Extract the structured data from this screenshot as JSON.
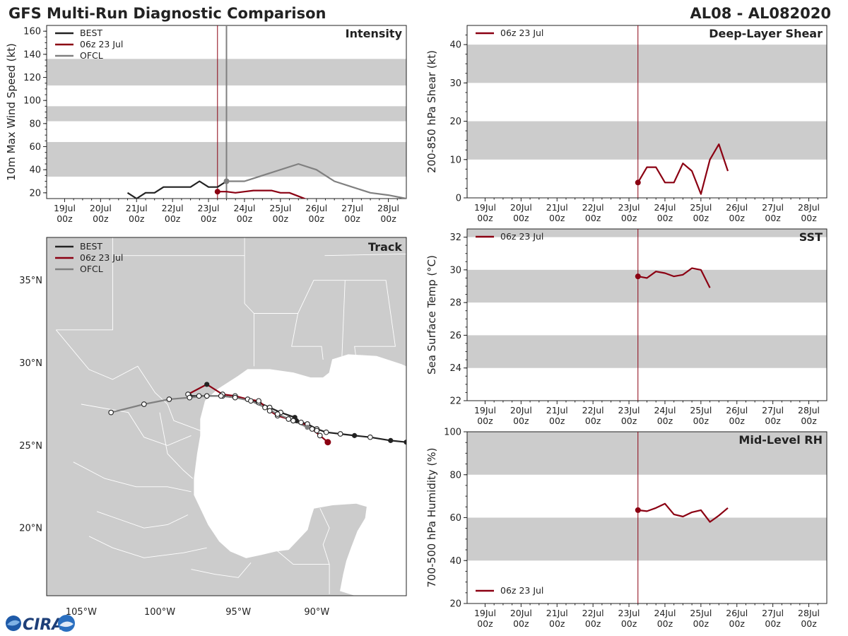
{
  "header": {
    "title": "GFS Multi-Run Diagnostic Comparison",
    "storm_id": "AL08 - AL082020"
  },
  "logo": {
    "text": "CIRA"
  },
  "colors": {
    "best": "#222222",
    "run": "#8b0012",
    "ofcl": "#808080",
    "band": "#cccccc",
    "axis": "#222222"
  },
  "time_axis": {
    "ticks": [
      {
        "day": "19Jul",
        "hour": "00z"
      },
      {
        "day": "20Jul",
        "hour": "00z"
      },
      {
        "day": "21Jul",
        "hour": "00z"
      },
      {
        "day": "22Jul",
        "hour": "00z"
      },
      {
        "day": "23Jul",
        "hour": "00z"
      },
      {
        "day": "24Jul",
        "hour": "00z"
      },
      {
        "day": "25Jul",
        "hour": "00z"
      },
      {
        "day": "26Jul",
        "hour": "00z"
      },
      {
        "day": "27Jul",
        "hour": "00z"
      },
      {
        "day": "28Jul",
        "hour": "00z"
      }
    ],
    "range_days": [
      -0.5,
      9.5
    ],
    "init_day": 4.25,
    "ofcl_day": 4.5
  },
  "chart_data": [
    {
      "id": "intensity",
      "type": "line",
      "title": "Intensity",
      "xlabel": "",
      "ylabel": "10m Max Wind Speed (kt)",
      "ylim": [
        15,
        165
      ],
      "yticks": [
        20,
        40,
        60,
        80,
        100,
        120,
        140,
        160
      ],
      "bands": [
        [
          34,
          64
        ],
        [
          82,
          95
        ],
        [
          113,
          136
        ]
      ],
      "legend": [
        "BEST",
        "06z 23 Jul",
        "OFCL"
      ],
      "series": [
        {
          "name": "BEST",
          "color": "best",
          "x": [
            1.75,
            2.0,
            2.25,
            2.5,
            2.75,
            3.0,
            3.25,
            3.5,
            3.75,
            4.0,
            4.25,
            4.5
          ],
          "y": [
            20,
            15,
            20,
            20,
            25,
            25,
            25,
            25,
            30,
            25,
            25,
            30
          ]
        },
        {
          "name": "06z 23 Jul",
          "color": "run",
          "x": [
            4.25,
            4.5,
            4.75,
            5.0,
            5.25,
            5.5,
            5.75,
            6.0,
            6.25,
            6.5,
            6.75
          ],
          "y": [
            21,
            21,
            20,
            21,
            22,
            22,
            22,
            20,
            20,
            17,
            14
          ],
          "start_marker": true
        },
        {
          "name": "OFCL",
          "color": "ofcl",
          "x": [
            4.5,
            5.0,
            6.5,
            7.0,
            7.5,
            8.0,
            8.5,
            9.0,
            9.5
          ],
          "y": [
            30,
            30,
            45,
            40,
            30,
            25,
            20,
            18,
            15
          ],
          "start_marker": true
        }
      ]
    },
    {
      "id": "shear",
      "type": "line",
      "title": "Deep-Layer Shear",
      "xlabel": "",
      "ylabel": "200-850 hPa Shear (kt)",
      "ylim": [
        0,
        45
      ],
      "yticks": [
        0,
        10,
        20,
        30,
        40
      ],
      "bands": [
        [
          10,
          20
        ],
        [
          30,
          40
        ]
      ],
      "legend": [
        "06z 23 Jul"
      ],
      "series": [
        {
          "name": "06z 23 Jul",
          "color": "run",
          "x": [
            4.25,
            4.5,
            4.75,
            5.0,
            5.25,
            5.5,
            5.75,
            6.0,
            6.25,
            6.5,
            6.75
          ],
          "y": [
            4,
            8,
            8,
            4,
            4,
            9,
            7,
            1,
            10,
            14,
            7
          ],
          "start_marker": true
        }
      ]
    },
    {
      "id": "sst",
      "type": "line",
      "title": "SST",
      "xlabel": "",
      "ylabel": "Sea Surface Temp (°C)",
      "ylim": [
        22,
        32.5
      ],
      "yticks": [
        22,
        24,
        26,
        28,
        30,
        32
      ],
      "bands": [
        [
          24,
          26
        ],
        [
          28,
          30
        ],
        [
          32,
          34
        ]
      ],
      "legend": [
        "06z 23 Jul"
      ],
      "series": [
        {
          "name": "06z 23 Jul",
          "color": "run",
          "x": [
            4.25,
            4.5,
            4.75,
            5.0,
            5.25,
            5.5,
            5.75,
            6.0,
            6.25
          ],
          "y": [
            29.6,
            29.5,
            29.9,
            29.8,
            29.6,
            29.7,
            30.1,
            30.0,
            28.9
          ],
          "start_marker": true
        }
      ]
    },
    {
      "id": "rh",
      "type": "line",
      "title": "Mid-Level RH",
      "xlabel": "",
      "ylabel": "700-500 hPa Humidity (%)",
      "ylim": [
        20,
        100
      ],
      "yticks": [
        20,
        40,
        60,
        80,
        100
      ],
      "bands": [
        [
          40,
          60
        ],
        [
          80,
          100
        ]
      ],
      "legend": [
        "06z 23 Jul"
      ],
      "series": [
        {
          "name": "06z 23 Jul",
          "color": "run",
          "x": [
            4.25,
            4.5,
            4.75,
            5.0,
            5.25,
            5.5,
            5.75,
            6.0,
            6.25,
            6.5,
            6.75
          ],
          "y": [
            63.5,
            63,
            64.5,
            66.5,
            61.5,
            60.5,
            62.5,
            63.5,
            58,
            61,
            64.5
          ],
          "start_marker": true
        }
      ]
    },
    {
      "id": "track",
      "type": "scatter",
      "title": "Track",
      "xlabel": "",
      "ylabel": "",
      "xlim": [
        -107.2,
        -84.3
      ],
      "ylim": [
        15.9,
        37.6
      ],
      "xticks": [
        -105,
        -100,
        -95,
        -90
      ],
      "xtick_labels": [
        "105°W",
        "100°W",
        "95°W",
        "90°W"
      ],
      "yticks": [
        20,
        25,
        30,
        35
      ],
      "ytick_labels": [
        "20°N",
        "25°N",
        "30°N",
        "35°N"
      ],
      "legend": [
        "BEST",
        "06z 23 Jul",
        "OFCL"
      ],
      "series": [
        {
          "name": "BEST",
          "color": "best",
          "lon": [
            -84.3,
            -85.3,
            -86.6,
            -87.6,
            -88.5,
            -89.4,
            -90.0,
            -90.6,
            -91.3,
            -91.4,
            -92.3,
            -93.0,
            -93.7,
            -94.4,
            -95.2,
            -96.0,
            -97.0,
            -97.5,
            -98.1
          ],
          "lat": [
            25.2,
            25.3,
            25.5,
            25.6,
            25.7,
            25.8,
            26.0,
            26.3,
            26.5,
            26.7,
            27.0,
            27.3,
            27.6,
            27.8,
            27.9,
            28.0,
            28.0,
            28.0,
            28.0
          ],
          "filled": [
            1,
            1,
            0,
            1,
            0,
            0,
            0,
            0,
            1,
            1,
            0,
            0,
            0,
            1,
            1,
            0,
            0,
            0,
            1
          ]
        },
        {
          "name": "06z 23 Jul",
          "color": "run",
          "lon": [
            -89.3,
            -89.8,
            -90.3,
            -91.0,
            -91.8,
            -92.5,
            -93.0,
            -93.7,
            -94.4,
            -95.2,
            -96.0,
            -97.0,
            -98.2
          ],
          "lat": [
            25.2,
            25.6,
            26.0,
            26.4,
            26.6,
            26.8,
            27.1,
            27.7,
            27.8,
            28.0,
            28.1,
            28.7,
            28.1
          ],
          "filled": [
            1,
            0,
            0,
            0,
            0,
            0,
            0,
            0,
            0,
            0,
            0,
            1,
            0
          ]
        },
        {
          "name": "OFCL",
          "color": "ofcl",
          "lon": [
            -90.0,
            -90.6,
            -91.5,
            -92.5,
            -93.3,
            -94.2,
            -95.2,
            -96.1,
            -97.0,
            -98.1,
            -99.4,
            -101.0,
            -103.1
          ],
          "lat": [
            25.9,
            26.1,
            26.5,
            26.9,
            27.3,
            27.7,
            27.9,
            28.0,
            28.0,
            27.9,
            27.8,
            27.5,
            27.0
          ],
          "filled": [
            0,
            1,
            0,
            0,
            0,
            0,
            0,
            0,
            0,
            0,
            0,
            0,
            0
          ]
        }
      ]
    }
  ]
}
